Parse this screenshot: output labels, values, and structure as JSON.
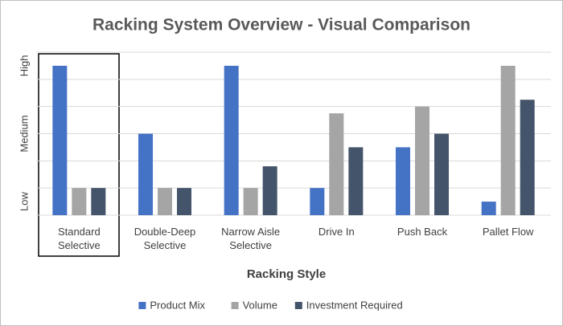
{
  "chart_data": {
    "type": "bar",
    "title": "Racking System Overview - Visual Comparison",
    "x_label": "Racking Style",
    "categories": [
      "Standard Selective",
      "Double-Deep Selective",
      "Narrow Aisle Selective",
      "Drive In",
      "Push Back",
      "Pallet Flow"
    ],
    "series": [
      {
        "name": "Product Mix",
        "color": "#4472c4",
        "values": [
          5.5,
          3,
          5.5,
          1,
          2.5,
          0.5
        ]
      },
      {
        "name": "Volume",
        "color": "#a5a5a5",
        "values": [
          1,
          1,
          1,
          3.75,
          4,
          5.5
        ]
      },
      {
        "name": "Investment Required",
        "color": "#44546a",
        "values": [
          1,
          1,
          1.8,
          2.5,
          3,
          4.25
        ]
      }
    ],
    "ylim": [
      0,
      6
    ],
    "yticks": [
      {
        "value": 0.5,
        "label": "Low"
      },
      {
        "value": 3,
        "label": "Medium"
      },
      {
        "value": 5.5,
        "label": "High"
      }
    ],
    "ygrid": [
      0,
      1,
      2,
      3,
      4,
      5,
      6
    ],
    "grid": true,
    "legend": "bottom"
  }
}
